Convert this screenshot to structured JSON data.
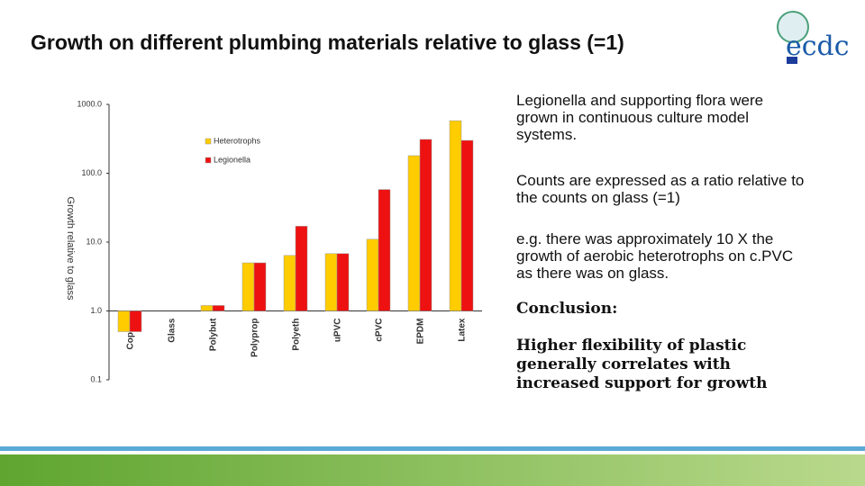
{
  "title": "Growth on different plumbing materials relative to glass (=1)",
  "logo": "ecdc",
  "notes": [
    "Legionella and supporting flora were grown in continuous culture model systems.",
    "Counts are expressed as a ratio relative to the counts on glass (=1)",
    "e.g. there was approximately 10 X the growth of aerobic heterotrophs on c.PVC as there was on glass."
  ],
  "conclusion": {
    "heading": "Conclusion:",
    "text": "Higher flexibility of plastic generally correlates with increased support for growth"
  },
  "chart_data": {
    "type": "bar",
    "ylabel": "Growth relative to glass",
    "log_scale": true,
    "grid": false,
    "legend": "upper left",
    "categories": [
      "Copper",
      "Glass",
      "Polybut",
      "Polyprop",
      "Polyeth",
      "uPVC",
      "cPVC",
      "EPDM",
      "Latex"
    ],
    "series": [
      {
        "name": "Heterotrophs",
        "color": "#ffcc00",
        "values": [
          0.5,
          1,
          1.2,
          5.0,
          6.4,
          6.8,
          11,
          180,
          580
        ]
      },
      {
        "name": "Legionella",
        "color": "#ee1111",
        "values": [
          0.5,
          1,
          1.2,
          5.0,
          17,
          6.8,
          58,
          310,
          300
        ]
      }
    ],
    "ylim": [
      0.1,
      1000
    ],
    "yticks": [
      0.1,
      {
        "value": 1,
        "label": "1.0"
      },
      {
        "value": 10,
        "label": "10.0"
      },
      {
        "value": 100,
        "label": "100.0"
      },
      {
        "value": 1000,
        "label": "1000.0"
      }
    ]
  }
}
